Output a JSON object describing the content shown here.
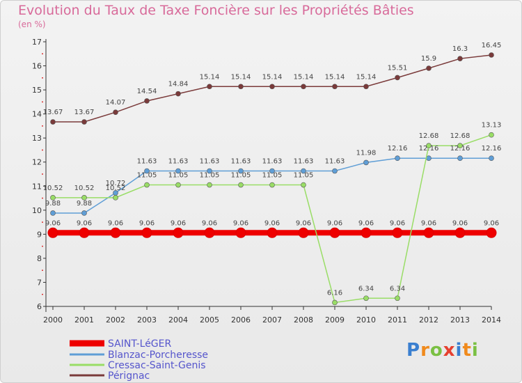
{
  "chart_data": {
    "type": "line",
    "title": "Evolution du Taux de Taxe Foncière sur les Propriétés Bâties",
    "unit_label": "(en %)",
    "xlabel": "",
    "ylabel": "",
    "ylim": [
      6,
      17
    ],
    "yticks": [
      6,
      7,
      8,
      9,
      10,
      11,
      12,
      13,
      14,
      15,
      16,
      17
    ],
    "categories": [
      "2000",
      "2001",
      "2002",
      "2003",
      "2004",
      "2005",
      "2006",
      "2007",
      "2008",
      "2009",
      "2010",
      "2011",
      "2012",
      "2013",
      "2014"
    ],
    "series": [
      {
        "name": "SAINT-LéGER",
        "color": "#ee0000",
        "thick": true,
        "values": [
          9.06,
          9.06,
          9.06,
          9.06,
          9.06,
          9.06,
          9.06,
          9.06,
          9.06,
          9.06,
          9.06,
          9.06,
          9.06,
          9.06,
          9.06
        ],
        "labels": [
          "9.06",
          "9.06",
          "9.06",
          "9.06",
          "9.06",
          "9.06",
          "9.06",
          "9.06",
          "9.06",
          "9.06",
          "9.06",
          "9.06",
          "9.06",
          "9.06",
          "9.06"
        ]
      },
      {
        "name": "Blanzac-Porcheresse",
        "color": "#5f9ed6",
        "thick": false,
        "values": [
          9.88,
          9.88,
          10.72,
          11.63,
          11.63,
          11.63,
          11.63,
          11.63,
          11.63,
          11.63,
          11.98,
          12.16,
          12.16,
          12.16,
          12.16
        ],
        "labels": [
          "9.88",
          "9.88",
          "10.72",
          "11.63",
          "11.63",
          "11.63",
          "11.63",
          "11.63",
          "11.63",
          "11.63",
          "11.98",
          "12.16",
          "12.16",
          "12.16",
          "12.16"
        ]
      },
      {
        "name": "Cressac-Saint-Genis",
        "color": "#99dd66",
        "thick": false,
        "values": [
          10.52,
          10.52,
          10.52,
          11.05,
          11.05,
          11.05,
          11.05,
          11.05,
          11.05,
          6.16,
          6.34,
          6.34,
          12.68,
          12.68,
          13.13
        ],
        "labels": [
          "10.52",
          "10.52",
          "10.52",
          "11.05",
          "11.05",
          "11.05",
          "11.05",
          "11.05",
          "11.05",
          "6.16",
          "6.34",
          "6.34",
          "12.68",
          "12.68",
          "13.13"
        ]
      },
      {
        "name": "Pérignac",
        "color": "#7a3a3a",
        "thick": false,
        "values": [
          13.67,
          13.67,
          14.07,
          14.54,
          14.84,
          15.14,
          15.14,
          15.14,
          15.14,
          15.14,
          15.14,
          15.51,
          15.9,
          16.3,
          16.45
        ],
        "labels": [
          "13.67",
          "13.67",
          "14.07",
          "14.54",
          "14.84",
          "15.14",
          "15.14",
          "15.14",
          "15.14",
          "15.14",
          "15.14",
          "15.51",
          "15.9",
          "16.3",
          "16.45"
        ]
      }
    ]
  },
  "logo": {
    "text": "Proxiti",
    "letters": [
      "P",
      "r",
      "o",
      "x",
      "i",
      "t",
      "i"
    ],
    "colors": [
      "#3a7fd0",
      "#f08a1c",
      "#7ac043",
      "#e6402f",
      "#3a7fd0",
      "#f08a1c",
      "#7ac043"
    ]
  }
}
